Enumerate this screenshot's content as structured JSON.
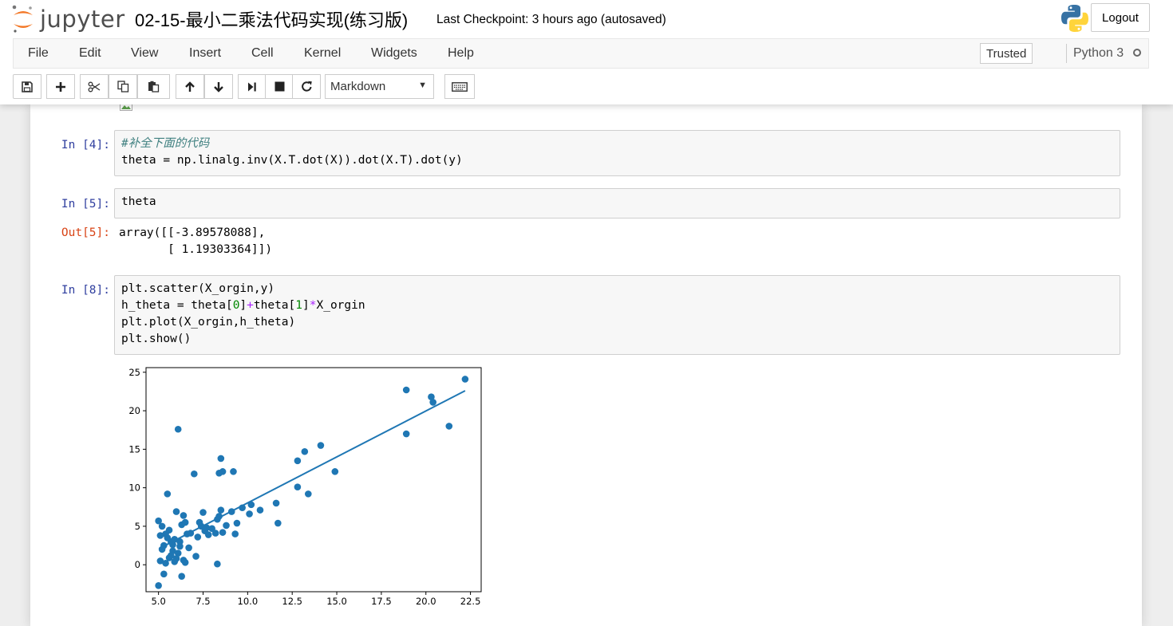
{
  "header": {
    "logo_text": "jupyter",
    "notebook_title": "02-15-最小二乘法代码实现(练习版)",
    "checkpoint": "Last Checkpoint: 3 hours ago (autosaved)",
    "logout_label": "Logout"
  },
  "menubar": {
    "items": [
      "File",
      "Edit",
      "View",
      "Insert",
      "Cell",
      "Kernel",
      "Widgets",
      "Help"
    ],
    "trusted_label": "Trusted",
    "kernel_name": "Python 3"
  },
  "toolbar": {
    "icons": [
      "save-icon",
      "plus-icon",
      "cut-icon",
      "copy-icon",
      "paste-icon",
      "arrow-up-icon",
      "arrow-down-icon",
      "run-icon",
      "stop-icon",
      "restart-icon",
      "keyboard-icon"
    ],
    "cell_type": "Markdown"
  },
  "cells": [
    {
      "prompt": "In  [4]:",
      "code_lines": [
        "#补全下面的代码",
        "theta = np.linalg.inv(X.T.dot(X)).dot(X.T).dot(y)"
      ]
    },
    {
      "prompt": "In  [5]:",
      "code_lines": [
        "theta"
      ],
      "out_prompt": "Out[5]:",
      "output_lines": [
        "array([[-3.89578088],",
        "       [ 1.19303364]])"
      ]
    },
    {
      "prompt": "In  [8]:",
      "code_lines": [
        "plt.scatter(X_orgin,y)",
        "h_theta = theta[0]+theta[1]*X_orgin",
        "plt.plot(X_orgin,h_theta)",
        "plt.show()"
      ]
    }
  ],
  "chart_data": {
    "type": "scatter",
    "xlim": [
      4.3,
      23.1
    ],
    "ylim": [
      -3.5,
      25.6
    ],
    "x_ticks": [
      5.0,
      7.5,
      10.0,
      12.5,
      15.0,
      17.5,
      20.0,
      22.5
    ],
    "x_tick_labels": [
      "5.0",
      "7.5",
      "10.0",
      "12.5",
      "15.0",
      "17.5",
      "20.0",
      "22.5"
    ],
    "y_ticks": [
      0,
      5,
      10,
      15,
      20,
      25
    ],
    "y_tick_labels": [
      "0",
      "5",
      "10",
      "15",
      "20",
      "25"
    ],
    "grid": false,
    "point_color": "#1f77b4",
    "line_color": "#1f77b4",
    "fit_line": {
      "x": [
        5.03,
        22.2
      ],
      "y": [
        2.1,
        22.6
      ]
    },
    "points": [
      [
        6.1,
        17.6
      ],
      [
        5.5,
        9.2
      ],
      [
        5.0,
        5.7
      ],
      [
        5.1,
        3.8
      ],
      [
        5.2,
        2.0
      ],
      [
        5.1,
        0.5
      ],
      [
        5.3,
        -1.2
      ],
      [
        5.0,
        -2.7
      ],
      [
        5.4,
        4.0
      ],
      [
        5.6,
        4.5
      ],
      [
        5.7,
        3.0
      ],
      [
        5.8,
        1.8
      ],
      [
        5.9,
        0.4
      ],
      [
        6.0,
        6.9
      ],
      [
        6.2,
        3.0
      ],
      [
        6.3,
        5.2
      ],
      [
        6.4,
        6.4
      ],
      [
        6.5,
        5.5
      ],
      [
        6.6,
        4.0
      ],
      [
        6.7,
        2.2
      ],
      [
        6.3,
        -1.5
      ],
      [
        7.0,
        11.8
      ],
      [
        7.1,
        1.1
      ],
      [
        7.2,
        3.6
      ],
      [
        7.4,
        5.0
      ],
      [
        7.5,
        6.8
      ],
      [
        7.6,
        4.4
      ],
      [
        7.8,
        3.9
      ],
      [
        8.0,
        4.7
      ],
      [
        8.2,
        4.1
      ],
      [
        8.3,
        5.9
      ],
      [
        8.4,
        6.3
      ],
      [
        8.5,
        7.1
      ],
      [
        8.4,
        11.9
      ],
      [
        8.6,
        12.1
      ],
      [
        8.5,
        13.8
      ],
      [
        8.3,
        0.1
      ],
      [
        8.6,
        4.2
      ],
      [
        8.8,
        5.1
      ],
      [
        9.1,
        6.9
      ],
      [
        9.2,
        12.1
      ],
      [
        9.3,
        4.0
      ],
      [
        9.4,
        5.4
      ],
      [
        9.7,
        7.4
      ],
      [
        10.1,
        6.6
      ],
      [
        10.2,
        7.8
      ],
      [
        10.7,
        7.1
      ],
      [
        11.6,
        8.0
      ],
      [
        11.7,
        5.4
      ],
      [
        12.8,
        13.5
      ],
      [
        12.8,
        10.1
      ],
      [
        13.2,
        14.7
      ],
      [
        13.4,
        9.2
      ],
      [
        14.1,
        15.5
      ],
      [
        14.9,
        12.1
      ],
      [
        18.9,
        22.7
      ],
      [
        18.9,
        17.0
      ],
      [
        20.3,
        21.8
      ],
      [
        20.4,
        21.1
      ],
      [
        21.3,
        18.0
      ],
      [
        22.2,
        24.1
      ],
      [
        5.6,
        0.9
      ],
      [
        5.8,
        2.6
      ],
      [
        6.1,
        1.5
      ],
      [
        6.4,
        0.6
      ],
      [
        5.2,
        5.0
      ],
      [
        5.5,
        3.5
      ],
      [
        5.9,
        3.3
      ],
      [
        6.2,
        2.4
      ],
      [
        6.8,
        4.1
      ],
      [
        7.3,
        5.5
      ],
      [
        7.7,
        4.8
      ],
      [
        5.4,
        0.2
      ],
      [
        5.7,
        1.2
      ],
      [
        6.0,
        0.8
      ],
      [
        5.3,
        2.5
      ],
      [
        6.5,
        0.3
      ]
    ]
  }
}
